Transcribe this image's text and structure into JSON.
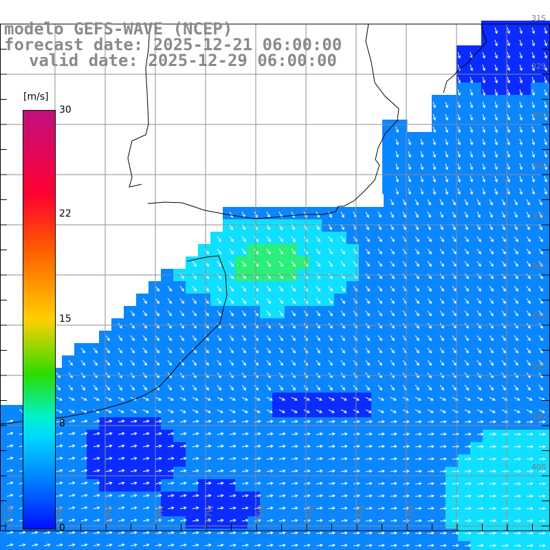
{
  "title": {
    "model": "modelo GEFS-WAVE (NCEP)",
    "forecast": "forecast date: 2025-12-21 06:00:00",
    "valid": "valid date: 2025-12-29 06:00:00"
  },
  "colorbar": {
    "unit": "[m/s]",
    "ticks": [
      "30",
      "22",
      "15",
      "8",
      "0"
    ],
    "range": [
      0,
      30
    ],
    "colors": [
      "#0010ff",
      "#0070ff",
      "#00d8ff",
      "#00f2c8",
      "#2cdc00",
      "#ffd000",
      "#ff5a00",
      "#ff0030",
      "#c0107e"
    ]
  },
  "lat_labels": [
    "31S",
    "32S",
    "33S",
    "34S",
    "35S",
    "36S",
    "37S",
    "38S",
    "39S",
    "40S"
  ],
  "lon_labels": [
    "61W",
    "60W",
    "59W",
    "58W",
    "57W",
    "56W",
    "55W",
    "54W",
    "53W"
  ],
  "map_colors": {
    "ocean_dark": "#0a2cff",
    "ocean_mid": "#0a86ff",
    "ocean_cyan": "#10e0ff",
    "ocean_green": "#2aef7a",
    "land": "#ffffff",
    "grid": "#8c8c8c",
    "coast": "#000000",
    "arrow": "#ffffff"
  }
}
